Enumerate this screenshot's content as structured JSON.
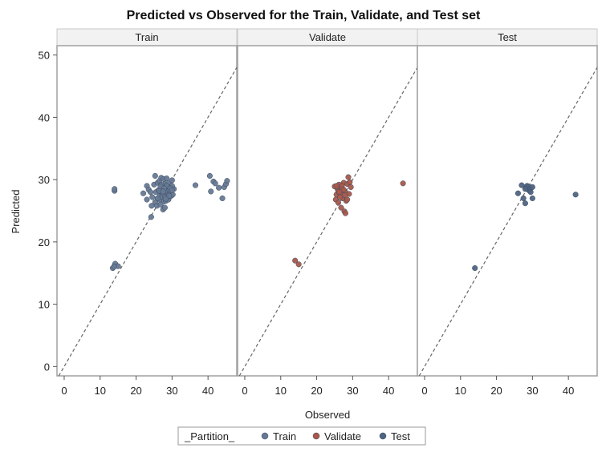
{
  "chart_data": {
    "type": "scatter",
    "title": "Predicted vs Observed for the Train, Validate, and Test set",
    "xlabel": "Observed",
    "ylabel": "Predicted",
    "xlim": [
      -2,
      48
    ],
    "ylim": [
      -1.5,
      51.5
    ],
    "x_ticks": [
      0,
      10,
      20,
      30,
      40
    ],
    "y_ticks": [
      0,
      10,
      20,
      30,
      40,
      50
    ],
    "reference_line": "y = x (dashed)",
    "legend": {
      "title": "_Partition_",
      "placement": "bottom-center",
      "entries": [
        {
          "label": "Train",
          "color": "#677a95"
        },
        {
          "label": "Validate",
          "color": "#a8584a"
        },
        {
          "label": "Test",
          "color": "#4f6582"
        }
      ]
    },
    "panels": [
      {
        "label": "Train",
        "color": "#677a95",
        "x": [
          13.5,
          14,
          14.2,
          15,
          13.9,
          14,
          14,
          22,
          23,
          23.5,
          23,
          24,
          24.3,
          24.2,
          24.5,
          25,
          25.3,
          25.5,
          25.3,
          25.8,
          26,
          26,
          26.2,
          26.5,
          26.5,
          26.7,
          26.8,
          27,
          27,
          27.2,
          27.3,
          27.5,
          27.5,
          27.7,
          27.8,
          28,
          28,
          28.2,
          28.3,
          28.5,
          28.5,
          28.8,
          29,
          29,
          29.3,
          29.5,
          29.8,
          30,
          30.2,
          30.5,
          26,
          27,
          28,
          29,
          30,
          26.5,
          27.5,
          28.5,
          29.5,
          27,
          28,
          29,
          30,
          26.8,
          28,
          29.2,
          27.8,
          28.2,
          27.5,
          36.5,
          40.5,
          40.8,
          41.5,
          42,
          43,
          44,
          44.5,
          45,
          45.3
        ],
        "y": [
          15.8,
          16.2,
          16.5,
          16.1,
          16.0,
          28.2,
          28.5,
          27.8,
          29.0,
          28.4,
          26.8,
          28.0,
          25.8,
          24.0,
          27.2,
          29.2,
          26.4,
          28.0,
          30.6,
          25.8,
          27.0,
          29.5,
          28.3,
          26.8,
          29.8,
          27.5,
          26.0,
          28.0,
          30.3,
          27.2,
          29.0,
          25.2,
          28.2,
          30.1,
          26.5,
          27.5,
          29.3,
          28.7,
          26.6,
          27.9,
          30.2,
          28.1,
          27.0,
          29.4,
          27.8,
          28.8,
          27.4,
          29.9,
          27.6,
          28.5,
          27.0,
          28.5,
          28.0,
          27.5,
          29.0,
          28.2,
          27.8,
          29.0,
          28.6,
          29.2,
          27.2,
          26.8,
          28.3,
          28.9,
          25.5,
          27.4,
          28.6,
          26.9,
          28.1,
          29.1,
          30.6,
          28.1,
          29.7,
          29.4,
          28.7,
          27.0,
          28.8,
          29.3,
          29.8
        ]
      },
      {
        "label": "Validate",
        "color": "#a8584a",
        "x": [
          14,
          15,
          25,
          25.3,
          25.5,
          25.8,
          26,
          26.2,
          26.5,
          26.8,
          27,
          27.2,
          27.5,
          27.7,
          28,
          28.2,
          28.5,
          28.8,
          29,
          29.2,
          29.5,
          26,
          27,
          28,
          25.5,
          26.5,
          27.5,
          28.5,
          26.3,
          27.8,
          44
        ],
        "y": [
          17.0,
          16.4,
          28.9,
          26.8,
          27.6,
          28.5,
          26.3,
          29.2,
          27.8,
          25.5,
          28.6,
          27.0,
          29.5,
          24.9,
          28.0,
          26.6,
          29.3,
          30.4,
          27.7,
          29.6,
          28.8,
          28.1,
          29.0,
          24.6,
          29.0,
          27.2,
          28.4,
          26.8,
          28.0,
          27.5,
          29.4
        ]
      },
      {
        "label": "Test",
        "color": "#4f6582",
        "x": [
          14,
          26,
          27,
          27.5,
          28,
          28.3,
          28.5,
          28.8,
          29,
          29.2,
          29.5,
          30,
          30,
          28,
          29.5,
          42
        ],
        "y": [
          15.8,
          27.8,
          29.1,
          27.0,
          26.2,
          28.7,
          29.0,
          28.4,
          28.9,
          28.2,
          28.6,
          27.0,
          28.8,
          28.5,
          28.0,
          27.6
        ]
      }
    ]
  }
}
